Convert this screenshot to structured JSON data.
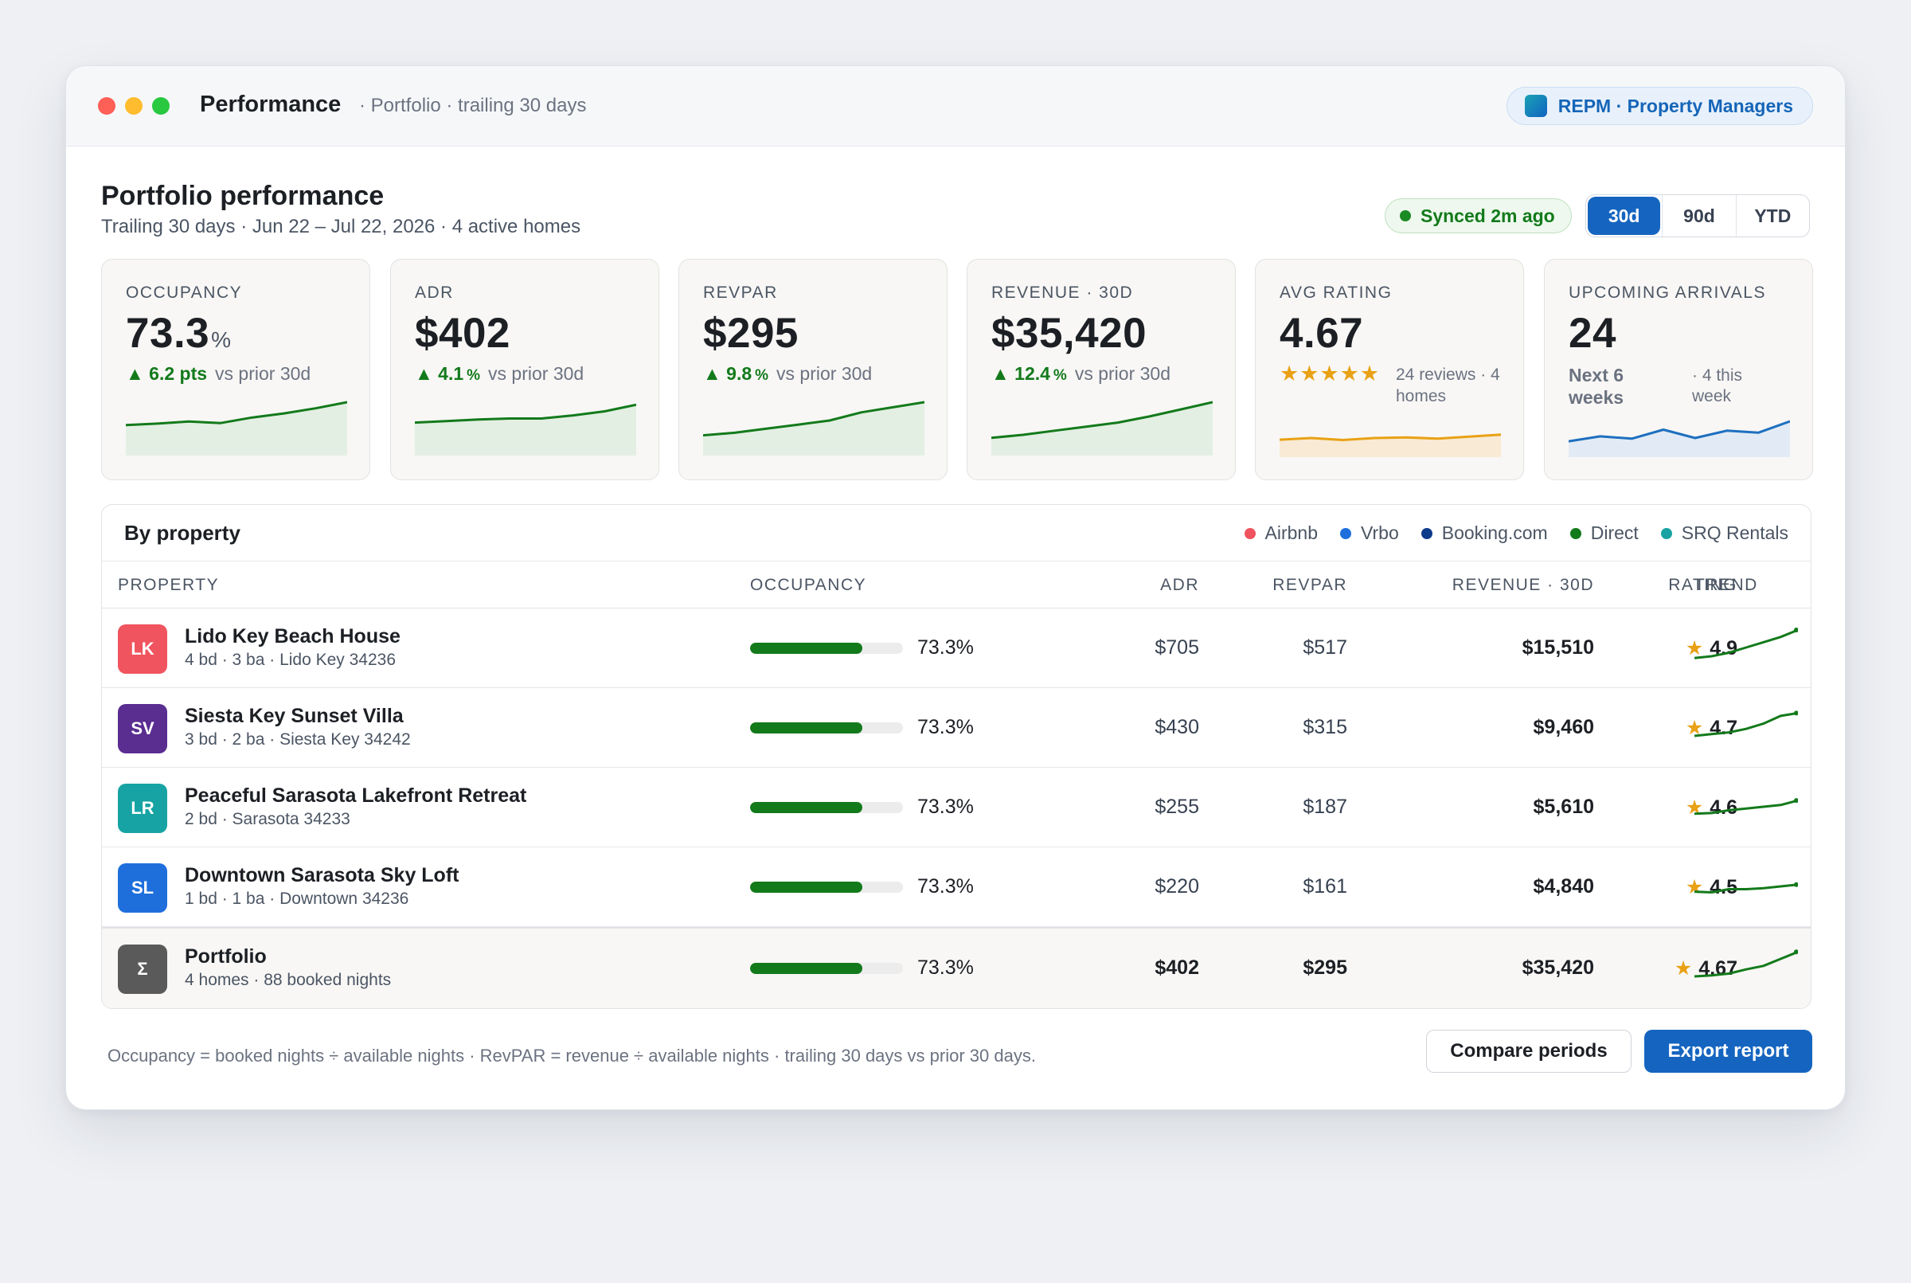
{
  "titlebar": {
    "title": "Performance",
    "subtitle": "· Portfolio · trailing 30 days",
    "badge": "REPM · Property Managers"
  },
  "header": {
    "title": "Portfolio performance",
    "subtitle": "Trailing 30 days · Jun 22 – Jul 22, 2026 · 4 active homes",
    "synced": "Synced 2m ago",
    "periods": [
      "30d",
      "90d",
      "YTD"
    ],
    "active_period": "30d"
  },
  "colors": {
    "accent": "#1565c0",
    "positive": "#137a1b",
    "star": "#e9a115"
  },
  "kpis": {
    "occupancy": {
      "label": "OCCUPANCY",
      "value": "73.3",
      "unit": "%",
      "delta": "6.2 pts",
      "delta_unit": "",
      "vs": "vs prior 30d",
      "trend": [
        0.55,
        0.58,
        0.62,
        0.59,
        0.7,
        0.78,
        0.88,
        1.0
      ]
    },
    "adr": {
      "label": "ADR",
      "value": "$402",
      "delta": "4.1",
      "delta_unit": "%",
      "vs": "vs prior 30d",
      "trend": [
        0.6,
        0.63,
        0.66,
        0.68,
        0.68,
        0.74,
        0.82,
        0.95
      ]
    },
    "revpar": {
      "label": "REVPAR",
      "value": "$295",
      "delta": "9.8",
      "delta_unit": "%",
      "vs": "vs prior 30d",
      "trend": [
        0.35,
        0.4,
        0.48,
        0.56,
        0.64,
        0.8,
        0.9,
        1.0
      ]
    },
    "revenue": {
      "label": "REVENUE · 30D",
      "value": "$35,420",
      "delta": "12.4",
      "delta_unit": "%",
      "vs": "vs prior 30d",
      "trend": [
        0.3,
        0.36,
        0.44,
        0.52,
        0.6,
        0.72,
        0.86,
        1.0
      ]
    },
    "rating": {
      "label": "AVG RATING",
      "value": "4.67",
      "stars": "★★★★★",
      "reviews": "24 reviews · 4 homes",
      "trend": [
        0.45,
        0.5,
        0.44,
        0.5,
        0.52,
        0.48,
        0.54,
        0.6
      ]
    },
    "arrivals": {
      "label": "UPCOMING ARRIVALS",
      "value": "24",
      "next": "Next 6 weeks",
      "week": "· 4 this week",
      "trend": [
        0.4,
        0.55,
        0.48,
        0.75,
        0.5,
        0.72,
        0.66,
        1.0
      ]
    }
  },
  "table": {
    "title": "By property",
    "legend": [
      {
        "label": "Airbnb",
        "color": "#f0545f"
      },
      {
        "label": "Vrbo",
        "color": "#1e6fdc"
      },
      {
        "label": "Booking.com",
        "color": "#0d3b8c"
      },
      {
        "label": "Direct",
        "color": "#137a1b"
      },
      {
        "label": "SRQ Rentals",
        "color": "#17a3a3"
      }
    ],
    "columns": {
      "property": "PROPERTY",
      "occupancy": "OCCUPANCY",
      "adr": "ADR",
      "revpar": "REVPAR",
      "revenue": "REVENUE · 30D",
      "rating": "RATING",
      "trend": "TREND"
    },
    "rows": [
      {
        "initials": "LK",
        "color": "#f0545f",
        "name": "Lido Key Beach House",
        "meta": "4 bd · 3 ba · Lido Key 34236",
        "occupancy": "73.3%",
        "occ_value": 0.733,
        "adr": "$705",
        "revpar": "$517",
        "revenue": "$15,510",
        "rating": "4.9",
        "trend": [
          0.2,
          0.25,
          0.35,
          0.5,
          0.65,
          0.8,
          1.0
        ]
      },
      {
        "initials": "SV",
        "color": "#5a2d91",
        "name": "Siesta Key Sunset Villa",
        "meta": "3 bd · 2 ba · Siesta Key 34242",
        "occupancy": "73.3%",
        "occ_value": 0.733,
        "adr": "$430",
        "revpar": "$315",
        "revenue": "$9,460",
        "rating": "4.7",
        "trend": [
          0.25,
          0.3,
          0.35,
          0.45,
          0.6,
          0.82,
          0.9
        ]
      },
      {
        "initials": "LR",
        "color": "#17a3a3",
        "name": "Peaceful Sarasota Lakefront Retreat",
        "meta": "2 bd · Sarasota 34233",
        "occupancy": "73.3%",
        "occ_value": 0.733,
        "adr": "$255",
        "revpar": "$187",
        "revenue": "$5,610",
        "rating": "4.6",
        "trend": [
          0.3,
          0.32,
          0.4,
          0.45,
          0.5,
          0.55,
          0.68
        ]
      },
      {
        "initials": "SL",
        "color": "#1e6fdc",
        "name": "Downtown Sarasota Sky Loft",
        "meta": "1 bd · 1 ba · Downtown 34236",
        "occupancy": "73.3%",
        "occ_value": 0.733,
        "adr": "$220",
        "revpar": "$161",
        "revenue": "$4,840",
        "rating": "4.5",
        "trend": [
          0.35,
          0.33,
          0.42,
          0.42,
          0.45,
          0.5,
          0.55
        ]
      }
    ],
    "total": {
      "initials": "Σ",
      "color": "#5a5a5a",
      "name": "Portfolio",
      "meta": "4 homes · 88 booked nights",
      "occupancy": "73.3%",
      "occ_value": 0.733,
      "adr": "$402",
      "revpar": "$295",
      "revenue": "$35,420",
      "rating": "4.67",
      "trend": [
        0.25,
        0.28,
        0.33,
        0.45,
        0.55,
        0.75,
        0.95
      ]
    }
  },
  "footer": {
    "note": "Occupancy = booked nights ÷ available nights · RevPAR = revenue ÷ available nights · trailing 30 days vs prior 30 days.",
    "compare_label": "Compare periods",
    "export_label": "Export report"
  }
}
